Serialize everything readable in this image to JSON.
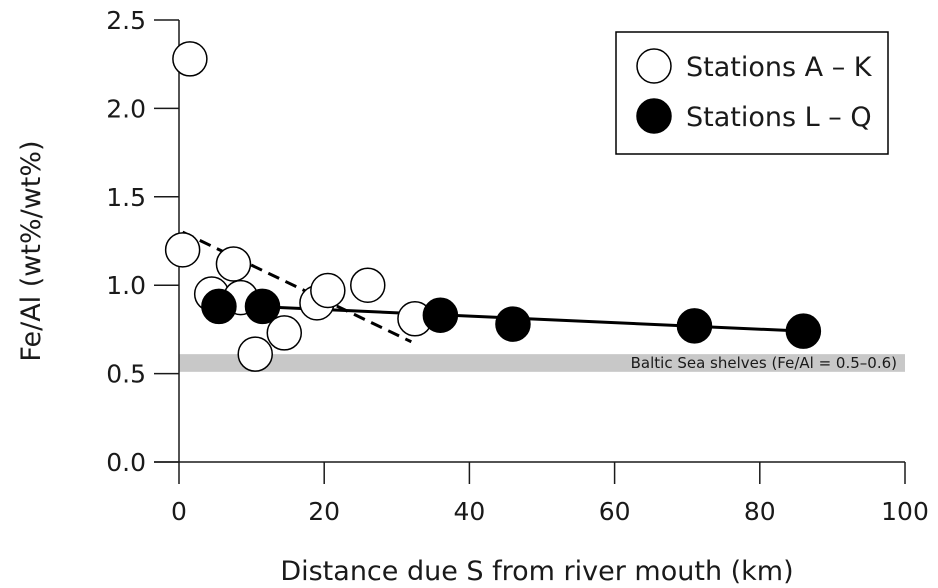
{
  "chart_data": {
    "type": "scatter",
    "xlabel": "Distance due S from river mouth (km)",
    "ylabel": "Fe/Al (wt%/wt%)",
    "xlim": [
      0,
      100
    ],
    "ylim": [
      0,
      2.5
    ],
    "x_ticks": [
      "0",
      "20",
      "40",
      "60",
      "80",
      "100"
    ],
    "y_ticks": [
      "0.0",
      "0.5",
      "1.0",
      "1.5",
      "2.0",
      "2.5"
    ],
    "grid": false,
    "legend_position": "top-right",
    "series": [
      {
        "name": "Stations A – K",
        "marker": "open-circle",
        "color": "#ffffff",
        "x": [
          0.5,
          1.5,
          4.5,
          7.5,
          8.5,
          10.5,
          14.5,
          19,
          20.5,
          26,
          32.5
        ],
        "y": [
          1.2,
          2.28,
          0.95,
          1.12,
          0.93,
          0.61,
          0.73,
          0.9,
          0.97,
          1.0,
          0.81
        ]
      },
      {
        "name": "Stations L – Q",
        "marker": "filled-circle",
        "color": "#000000",
        "x": [
          5.5,
          11.5,
          36,
          46,
          71,
          86
        ],
        "y": [
          0.88,
          0.88,
          0.83,
          0.78,
          0.77,
          0.74
        ]
      }
    ],
    "trend_lines": [
      {
        "style": "dashed",
        "x": [
          0.5,
          32
        ],
        "y": [
          1.3,
          0.68
        ]
      },
      {
        "style": "solid",
        "x": [
          5,
          86
        ],
        "y": [
          0.89,
          0.74
        ]
      }
    ],
    "band": {
      "y_range": [
        0.51,
        0.61
      ],
      "color": "#c8c8c8",
      "label": "Baltic Sea shelves (Fe/Al = 0.5–0.6)"
    }
  }
}
